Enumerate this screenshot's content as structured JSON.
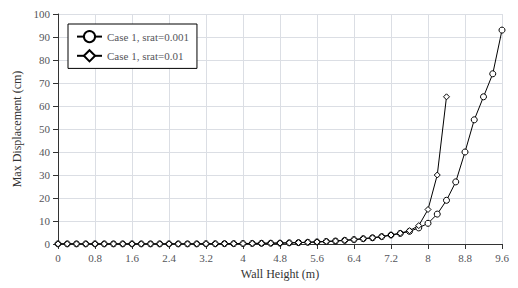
{
  "chart_data": {
    "type": "line",
    "xlabel": "Wall Height (m)",
    "ylabel": "Max Displacement (cm)",
    "xlim": [
      0,
      9.6
    ],
    "ylim": [
      0,
      100
    ],
    "xticks": [
      0,
      0.8,
      1.6,
      2.4,
      3.2,
      4,
      4.8,
      5.6,
      6.4,
      7.2,
      8,
      8.8,
      9.6
    ],
    "yticks": [
      0,
      10,
      20,
      30,
      40,
      50,
      60,
      70,
      80,
      90,
      100
    ],
    "grid": true,
    "legend": "upper left",
    "series": [
      {
        "name": "Case 1, srat=0.001",
        "color": "#000000",
        "marker": "circle",
        "x": [
          0.0,
          0.2,
          0.4,
          0.6,
          0.8,
          1.0,
          1.2,
          1.4,
          1.6,
          1.8,
          2.0,
          2.2,
          2.4,
          2.6,
          2.8,
          3.0,
          3.2,
          3.4,
          3.6,
          3.8,
          4.0,
          4.2,
          4.4,
          4.6,
          4.8,
          5.0,
          5.2,
          5.4,
          5.6,
          5.8,
          6.0,
          6.2,
          6.4,
          6.6,
          6.8,
          7.0,
          7.2,
          7.4,
          7.6,
          7.8,
          8.0,
          8.2,
          8.4,
          8.6,
          8.8,
          9.0,
          9.2,
          9.4,
          9.6
        ],
        "values": [
          0.05,
          0.05,
          0.05,
          0.05,
          0.05,
          0.05,
          0.05,
          0.05,
          0.05,
          0.05,
          0.05,
          0.05,
          0.05,
          0.05,
          0.05,
          0.05,
          0.1,
          0.1,
          0.15,
          0.15,
          0.2,
          0.25,
          0.3,
          0.35,
          0.4,
          0.5,
          0.6,
          0.75,
          0.9,
          1.1,
          1.3,
          1.6,
          1.9,
          2.3,
          2.7,
          3.2,
          3.9,
          4.6,
          5.5,
          7.0,
          9.0,
          13.0,
          19.0,
          27.0,
          40.0,
          54.0,
          64.0,
          74.0,
          93.0
        ]
      },
      {
        "name": "Case 1, srat=0.01",
        "color": "#000000",
        "marker": "diamond",
        "x": [
          0.0,
          0.2,
          0.4,
          0.6,
          0.8,
          1.0,
          1.2,
          1.4,
          1.6,
          1.8,
          2.0,
          2.2,
          2.4,
          2.6,
          2.8,
          3.0,
          3.2,
          3.4,
          3.6,
          3.8,
          4.0,
          4.2,
          4.4,
          4.6,
          4.8,
          5.0,
          5.2,
          5.4,
          5.6,
          5.8,
          6.0,
          6.2,
          6.4,
          6.6,
          6.8,
          7.0,
          7.2,
          7.4,
          7.6,
          7.8,
          8.0,
          8.2,
          8.4
        ],
        "values": [
          0.05,
          0.05,
          0.05,
          0.05,
          0.05,
          0.05,
          0.05,
          0.05,
          0.05,
          0.05,
          0.05,
          0.05,
          0.05,
          0.05,
          0.05,
          0.05,
          0.1,
          0.1,
          0.15,
          0.15,
          0.2,
          0.25,
          0.3,
          0.35,
          0.4,
          0.5,
          0.6,
          0.75,
          0.9,
          1.1,
          1.3,
          1.6,
          1.9,
          2.3,
          2.7,
          3.2,
          3.9,
          4.7,
          5.8,
          8.0,
          15.0,
          30.0,
          64.0
        ]
      }
    ]
  }
}
